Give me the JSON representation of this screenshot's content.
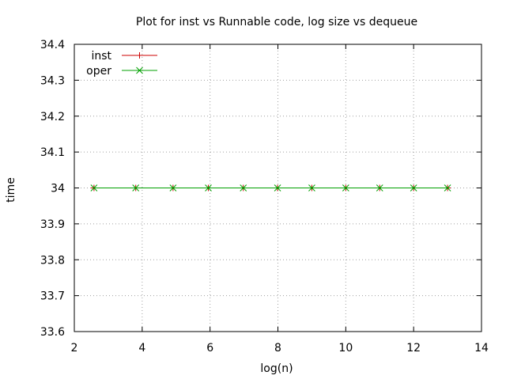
{
  "chart_data": {
    "type": "line",
    "title": "Plot for inst vs Runnable code, log size vs dequeue",
    "xlabel": "log(n)",
    "ylabel": "time",
    "xlim": [
      2,
      14
    ],
    "ylim": [
      33.6,
      34.4
    ],
    "xticks": [
      2,
      4,
      6,
      8,
      10,
      12,
      14
    ],
    "xtick_labels": [
      "2",
      "4",
      "6",
      "8",
      "10",
      "12",
      "14"
    ],
    "yticks": [
      33.6,
      33.7,
      33.8,
      33.9,
      34.0,
      34.1,
      34.2,
      34.3,
      34.4
    ],
    "ytick_labels": [
      "33.6",
      "33.7",
      "33.8",
      "33.9",
      "34",
      "34.1",
      "34.2",
      "34.3",
      "34.4"
    ],
    "grid": true,
    "legend_position": "top-left",
    "series": [
      {
        "name": "inst",
        "color": "#cc0000",
        "marker": "plus",
        "x": [
          2.58,
          3.81,
          4.91,
          5.95,
          6.98,
          7.99,
          9.0,
          10.0,
          11.0,
          12.0,
          13.0
        ],
        "y": [
          34,
          34,
          34,
          34,
          34,
          34,
          34,
          34,
          34,
          34,
          34
        ]
      },
      {
        "name": "oper",
        "color": "#00a000",
        "marker": "cross",
        "x": [
          2.58,
          3.81,
          4.91,
          5.95,
          6.98,
          7.99,
          9.0,
          10.0,
          11.0,
          12.0,
          13.0
        ],
        "y": [
          34,
          34,
          34,
          34,
          34,
          34,
          34,
          34,
          34,
          34,
          34
        ]
      }
    ]
  }
}
